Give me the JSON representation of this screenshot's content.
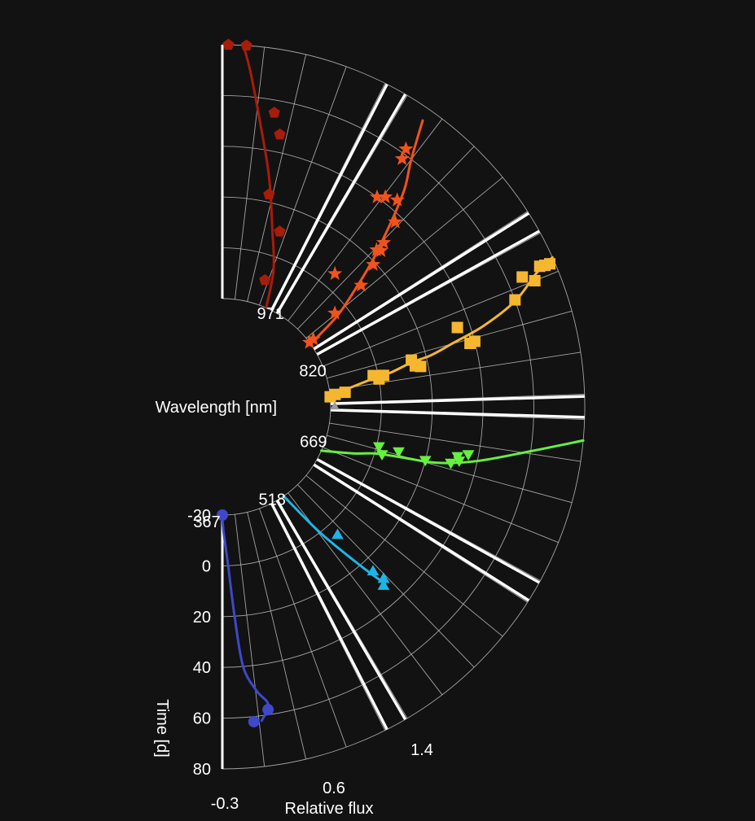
{
  "chart_data": {
    "type": "scatter",
    "projection": "polar-sector",
    "background": "#121212",
    "wavelength_axis": {
      "label": "Wavelength [nm]",
      "ticks": [
        367,
        518,
        669,
        820,
        971
      ],
      "range": [
        367,
        1000
      ]
    },
    "time_axis": {
      "label": "Time [d]",
      "ticks": [
        -20,
        0,
        20,
        40,
        60,
        80
      ],
      "range": [
        -20,
        80
      ]
    },
    "flux_axis": {
      "label": "Relative flux",
      "ticks": [
        "-0.3",
        "0.6",
        "1.4"
      ],
      "tick_values": [
        -0.3,
        0.6,
        1.4
      ]
    },
    "series": [
      {
        "color": "#3f48c8",
        "marker": "circle",
        "points": [
          [
            -20,
            -0.3
          ],
          [
            58,
            0.6
          ],
          [
            62,
            0.3
          ]
        ],
        "curve": [
          [
            -20,
            -0.3
          ],
          [
            -14,
            -0.25
          ],
          [
            0,
            -0.08
          ],
          [
            20,
            0.05
          ],
          [
            40,
            0.18
          ],
          [
            50,
            0.42
          ],
          [
            56,
            0.62
          ],
          [
            62,
            0.45
          ]
        ]
      },
      {
        "color": "#1fb4e6",
        "marker": "triangle-up",
        "points": [
          [
            5,
            0.9
          ],
          [
            25,
            0.95
          ],
          [
            30,
            1.02
          ],
          [
            32,
            0.9
          ]
        ],
        "curve": [
          [
            -20,
            0.1
          ],
          [
            0,
            0.45
          ],
          [
            20,
            0.78
          ],
          [
            32,
            0.95
          ]
        ]
      },
      {
        "color": "#66f040",
        "marker": "triangle-down",
        "points": [
          [
            3,
            0.95
          ],
          [
            1,
            1.2
          ],
          [
            9,
            1.2
          ],
          [
            20,
            1.15
          ],
          [
            30,
            1.25
          ],
          [
            33,
            1.35
          ],
          [
            32,
            1.45
          ],
          [
            36,
            1.55
          ]
        ],
        "curve": [
          [
            -20,
            0.2
          ],
          [
            -8,
            0.65
          ],
          [
            0,
            0.92
          ],
          [
            10,
            1.05
          ],
          [
            25,
            1.18
          ],
          [
            40,
            1.45
          ],
          [
            60,
            1.85
          ],
          [
            80,
            2.15
          ]
        ]
      },
      {
        "color": "#f5b730",
        "marker": "square",
        "points": [
          [
            -20,
            0.05
          ],
          [
            -18,
            0.15
          ],
          [
            -14,
            0.2
          ],
          [
            0,
            0.55
          ],
          [
            2,
            0.65
          ],
          [
            -2,
            0.72
          ],
          [
            15,
            0.75
          ],
          [
            17,
            0.7
          ],
          [
            14,
            0.95
          ],
          [
            38,
            1.0
          ],
          [
            40,
            1.02
          ],
          [
            35,
            1.45
          ],
          [
            60,
            1.6
          ],
          [
            70,
            1.8
          ],
          [
            66,
            1.95
          ],
          [
            74,
            2.0
          ],
          [
            76,
            1.98
          ],
          [
            78,
            1.97
          ]
        ],
        "curve": [
          [
            -20,
            0.1
          ],
          [
            -5,
            0.55
          ],
          [
            5,
            0.7
          ],
          [
            14,
            0.88
          ],
          [
            22,
            0.95
          ],
          [
            32,
            1.12
          ],
          [
            45,
            1.3
          ],
          [
            60,
            1.58
          ],
          [
            72,
            1.92
          ],
          [
            80,
            2.05
          ]
        ]
      },
      {
        "color": "#f0531c",
        "marker": "star",
        "points": [
          [
            -20,
            0.1
          ],
          [
            -18,
            0.12
          ],
          [
            -5,
            0.45
          ],
          [
            10,
            0.6
          ],
          [
            19,
            0.82
          ],
          [
            25,
            0.95
          ],
          [
            24,
            1.05
          ],
          [
            28,
            1.05
          ],
          [
            37,
            1.2
          ],
          [
            44,
            1.5
          ],
          [
            6,
            1.5
          ],
          [
            42,
            1.75
          ],
          [
            40,
            1.9
          ],
          [
            58,
            1.95
          ],
          [
            62,
            2.0
          ]
        ],
        "curve": [
          [
            -20,
            0.0
          ],
          [
            -5,
            0.3
          ],
          [
            8,
            0.65
          ],
          [
            20,
            0.92
          ],
          [
            30,
            1.15
          ],
          [
            40,
            1.35
          ],
          [
            50,
            1.55
          ],
          [
            60,
            1.8
          ],
          [
            75,
            2.05
          ]
        ]
      },
      {
        "color": "#a81c0a",
        "marker": "pentagon",
        "points": [
          [
            -10,
            0.55
          ],
          [
            10,
            0.6
          ],
          [
            23,
            1.2
          ],
          [
            47,
            1.25
          ],
          [
            55,
            1.45
          ],
          [
            80,
            2.1
          ],
          [
            80,
            2.4
          ]
        ],
        "curve": [
          [
            -20,
            0.0
          ],
          [
            -5,
            0.35
          ],
          [
            10,
            0.85
          ],
          [
            30,
            1.3
          ],
          [
            50,
            1.7
          ],
          [
            70,
            2.0
          ],
          [
            80,
            2.15
          ]
        ]
      }
    ]
  }
}
